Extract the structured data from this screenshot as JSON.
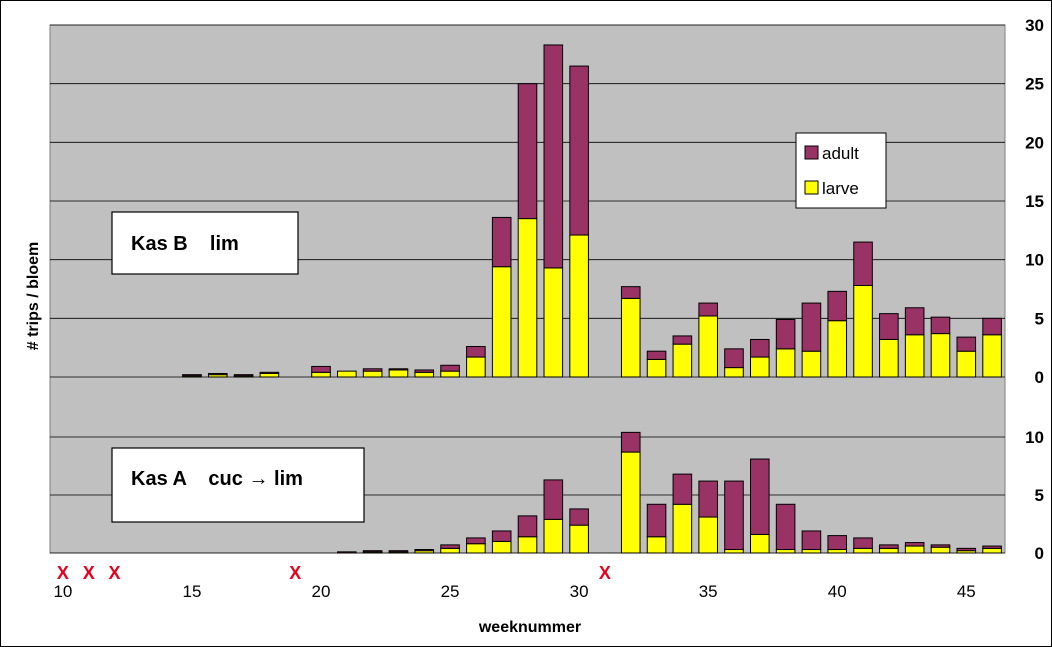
{
  "chart_data": {
    "type": "bar",
    "xlabel": "weeknummer",
    "ylabel": "# trips / bloem",
    "x_ticks": [
      "10",
      "15",
      "20",
      "25",
      "30",
      "35",
      "40",
      "45"
    ],
    "x_range": [
      9.5,
      46.5
    ],
    "missing_weeks": [
      10,
      11,
      12,
      19,
      31
    ],
    "missing_marker": "X",
    "legend": [
      {
        "name": "adult",
        "color": "#993366"
      },
      {
        "name": "larve",
        "color": "#ffff00"
      }
    ],
    "panels": [
      {
        "label": "Kas B    lim",
        "ylim": [
          0,
          30
        ],
        "yticks": [
          "0",
          "5",
          "10",
          "15",
          "20",
          "25",
          "30"
        ],
        "weeks": [
          15,
          16,
          17,
          18,
          20,
          21,
          22,
          23,
          24,
          25,
          26,
          27,
          28,
          29,
          30,
          32,
          33,
          34,
          35,
          36,
          37,
          38,
          39,
          40,
          41,
          42,
          43,
          44,
          45,
          46
        ],
        "series": [
          {
            "name": "larve",
            "values": [
              0.1,
              0.2,
              0.1,
              0.3,
              0.4,
              0.5,
              0.5,
              0.6,
              0.4,
              0.5,
              1.7,
              9.4,
              13.5,
              9.3,
              12.1,
              6.7,
              1.5,
              2.8,
              5.2,
              0.8,
              1.7,
              2.4,
              2.2,
              4.8,
              7.8,
              3.2,
              3.6,
              3.7,
              2.2,
              3.6
            ]
          },
          {
            "name": "adult",
            "values": [
              0.1,
              0.1,
              0.1,
              0.1,
              0.5,
              0.0,
              0.2,
              0.1,
              0.2,
              0.5,
              0.9,
              4.2,
              11.5,
              19.0,
              14.4,
              1.0,
              0.7,
              0.7,
              1.1,
              1.6,
              1.5,
              2.5,
              4.1,
              2.5,
              3.7,
              2.2,
              2.3,
              1.4,
              1.2,
              1.4
            ]
          }
        ]
      },
      {
        "label": "Kas A    cuc → lim",
        "ylim": [
          0,
          10.5
        ],
        "yticks": [
          "0",
          "5",
          "10"
        ],
        "weeks": [
          21,
          22,
          23,
          24,
          25,
          26,
          27,
          28,
          29,
          30,
          32,
          33,
          34,
          35,
          36,
          37,
          38,
          39,
          40,
          41,
          42,
          43,
          44,
          45,
          46
        ],
        "series": [
          {
            "name": "larve",
            "values": [
              0.0,
              0.1,
              0.1,
              0.2,
              0.4,
              0.8,
              1.0,
              1.4,
              2.9,
              2.4,
              8.7,
              1.4,
              4.2,
              3.1,
              0.3,
              1.6,
              0.3,
              0.3,
              0.3,
              0.4,
              0.4,
              0.6,
              0.5,
              0.2,
              0.4
            ]
          },
          {
            "name": "adult",
            "values": [
              0.1,
              0.1,
              0.1,
              0.1,
              0.3,
              0.5,
              0.9,
              1.8,
              3.4,
              1.4,
              1.7,
              2.8,
              2.6,
              3.1,
              5.9,
              6.5,
              3.9,
              1.6,
              1.2,
              0.9,
              0.3,
              0.3,
              0.2,
              0.2,
              0.2
            ]
          }
        ]
      }
    ]
  }
}
